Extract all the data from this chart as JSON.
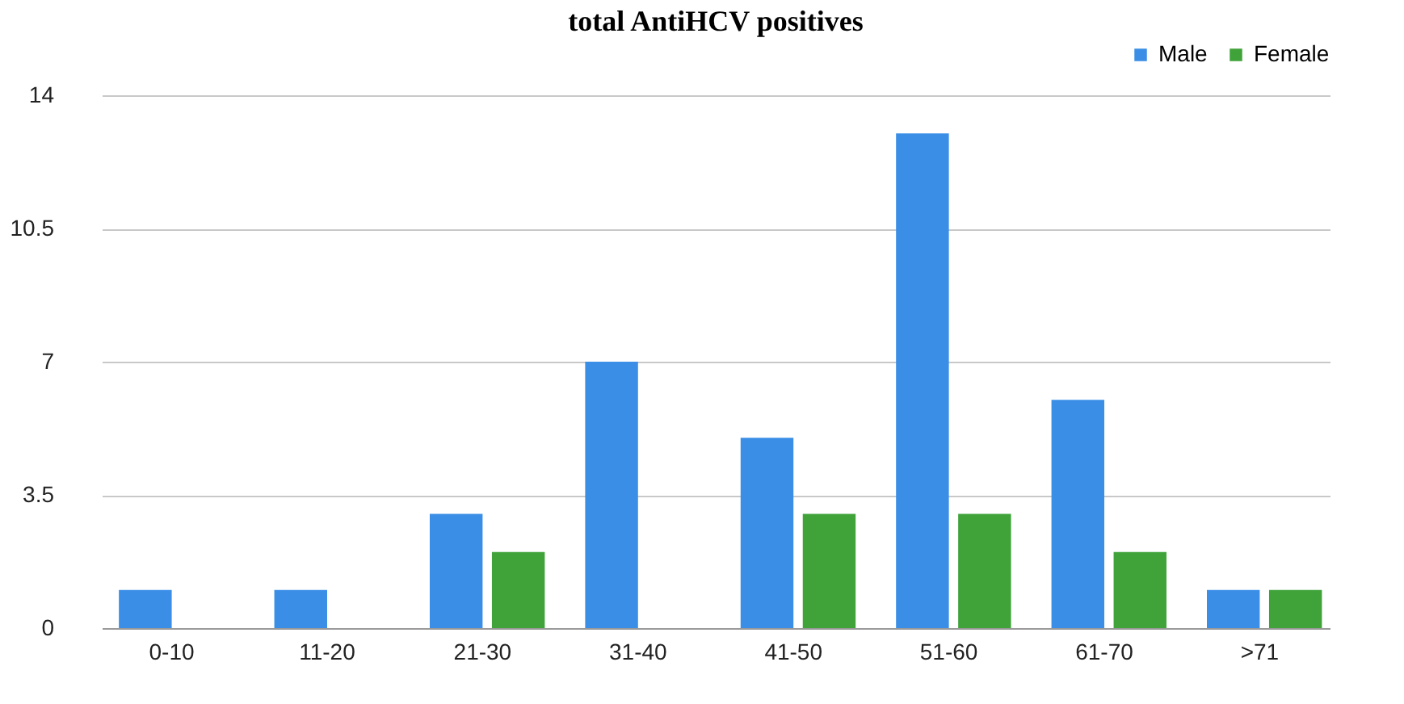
{
  "chart_data": {
    "type": "bar",
    "title": "total AntiHCV positives",
    "categories": [
      "0-10",
      "11-20",
      "21-30",
      "31-40",
      "41-50",
      "51-60",
      "61-70",
      ">71"
    ],
    "series": [
      {
        "name": "Male",
        "color": "#3a8ee6",
        "values": [
          1,
          1,
          3,
          7,
          5,
          13,
          6,
          1
        ]
      },
      {
        "name": "Female",
        "color": "#3fa33a",
        "values": [
          0,
          0,
          2,
          0,
          3,
          3,
          2,
          1
        ]
      }
    ],
    "ylim": [
      0,
      14
    ],
    "yticks": [
      0,
      3.5,
      7,
      10.5,
      14
    ],
    "grid": "y",
    "legend": "top right"
  }
}
